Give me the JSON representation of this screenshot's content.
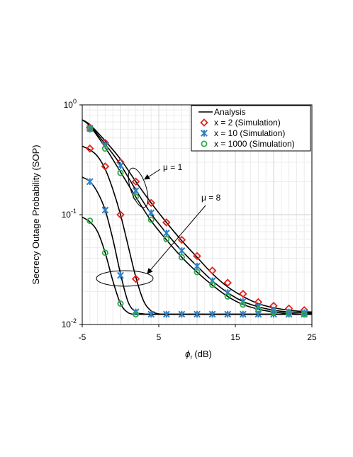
{
  "chart_data": {
    "type": "line",
    "xlabel": "ϕ",
    "xlabel_sub": "r",
    "xlabel_unit": "(dB)",
    "ylabel": "Secrecy Outage Probability (SOP)",
    "y_scale": "log",
    "xlim": [
      -5,
      25
    ],
    "ylim": [
      0.01,
      1
    ],
    "x_ticks": [
      {
        "value": -5,
        "label": "-5"
      },
      {
        "value": 5,
        "label": "5"
      },
      {
        "value": 15,
        "label": "15"
      },
      {
        "value": 25,
        "label": "25"
      }
    ],
    "y_ticks": [
      {
        "value": 0.01,
        "base": "10",
        "exp": "-2"
      },
      {
        "value": 0.1,
        "base": "10",
        "exp": "-1"
      },
      {
        "value": 1,
        "base": "10",
        "exp": "0"
      }
    ],
    "grid": true,
    "legend_position": "top-right",
    "legend": [
      {
        "label": "Analysis",
        "marker": "line",
        "color": "#000000"
      },
      {
        "label": "x = 2 (Simulation)",
        "marker": "diamond",
        "color": "#e2231a"
      },
      {
        "label": "x = 10 (Simulation)",
        "marker": "asterisk",
        "color": "#2f7fc1"
      },
      {
        "label": "x = 1000 (Simulation)",
        "marker": "circle",
        "color": "#2eaa4a"
      }
    ],
    "annotations": [
      {
        "text": "μ = 1"
      },
      {
        "text": "μ = 8"
      }
    ],
    "analysis_curves": [
      {
        "group": "mu1",
        "x": [
          -5,
          -4,
          -2,
          0,
          2,
          4,
          6,
          8,
          10,
          12,
          14,
          16,
          18,
          20,
          22,
          24,
          25
        ],
        "y": [
          0.73,
          0.66,
          0.47,
          0.32,
          0.2,
          0.128,
          0.085,
          0.058,
          0.041,
          0.029,
          0.022,
          0.018,
          0.0155,
          0.0142,
          0.0135,
          0.0131,
          0.013
        ]
      },
      {
        "group": "mu1",
        "x": [
          -5,
          -4,
          -2,
          0,
          2,
          4,
          6,
          8,
          10,
          12,
          14,
          16,
          18,
          20,
          22,
          24,
          25
        ],
        "y": [
          0.73,
          0.65,
          0.44,
          0.285,
          0.168,
          0.102,
          0.068,
          0.047,
          0.034,
          0.025,
          0.0195,
          0.0162,
          0.0145,
          0.0135,
          0.013,
          0.0128,
          0.0127
        ]
      },
      {
        "group": "mu1",
        "x": [
          -5,
          -4,
          -2,
          0,
          2,
          4,
          6,
          8,
          10,
          12,
          14,
          16,
          18,
          20,
          22,
          24,
          25
        ],
        "y": [
          0.73,
          0.64,
          0.41,
          0.245,
          0.145,
          0.088,
          0.059,
          0.041,
          0.03,
          0.0228,
          0.018,
          0.0152,
          0.0138,
          0.013,
          0.0126,
          0.0124,
          0.0124
        ]
      },
      {
        "group": "mu8",
        "x": [
          -5,
          -4,
          -3,
          -2,
          -1,
          0,
          1,
          2,
          3,
          4,
          5,
          6,
          8,
          10,
          14,
          18,
          25
        ],
        "y": [
          0.42,
          0.39,
          0.34,
          0.26,
          0.17,
          0.1,
          0.052,
          0.027,
          0.0165,
          0.0133,
          0.0125,
          0.0124,
          0.0124,
          0.0124,
          0.0124,
          0.0124,
          0.0124
        ]
      },
      {
        "group": "mu8",
        "x": [
          -5,
          -4,
          -3,
          -2,
          -1,
          0,
          1,
          2,
          3,
          4,
          6,
          10,
          25
        ],
        "y": [
          0.22,
          0.2,
          0.16,
          0.11,
          0.06,
          0.029,
          0.016,
          0.013,
          0.0125,
          0.0124,
          0.0124,
          0.0124,
          0.0124
        ]
      },
      {
        "group": "mu8",
        "x": [
          -5,
          -4,
          -3,
          -2,
          -1,
          0,
          1,
          2,
          3,
          5,
          10,
          25
        ],
        "y": [
          0.095,
          0.086,
          0.07,
          0.045,
          0.025,
          0.0155,
          0.0128,
          0.0124,
          0.0124,
          0.0124,
          0.0124,
          0.0124
        ]
      }
    ],
    "series": [
      {
        "name": "x = 2 (Simulation)",
        "marker": "diamond",
        "color": "#e2231a",
        "x": [
          -4,
          -2,
          0,
          2,
          4,
          6,
          8,
          10,
          12,
          14,
          16,
          18,
          20,
          22,
          24
        ],
        "y": [
          0.62,
          0.45,
          0.3,
          0.2,
          0.128,
          0.085,
          0.059,
          0.042,
          0.031,
          0.024,
          0.019,
          0.016,
          0.0148,
          0.014,
          0.0135
        ]
      },
      {
        "name": "x = 2 (Simulation)",
        "marker": "diamond",
        "color": "#e2231a",
        "x": [
          -4,
          -2,
          0,
          2
        ],
        "y": [
          0.4,
          0.275,
          0.1,
          0.026
        ]
      },
      {
        "name": "x = 10 (Simulation)",
        "marker": "asterisk",
        "color": "#2f7fc1",
        "x": [
          -4,
          -2,
          0,
          2,
          4,
          6,
          8,
          10,
          12,
          14,
          16,
          18,
          20,
          22,
          24
        ],
        "y": [
          0.61,
          0.43,
          0.28,
          0.165,
          0.104,
          0.068,
          0.047,
          0.034,
          0.025,
          0.0195,
          0.0162,
          0.0145,
          0.0135,
          0.013,
          0.0128
        ]
      },
      {
        "name": "x = 10 (Simulation)",
        "marker": "asterisk",
        "color": "#2f7fc1",
        "x": [
          -4,
          -2,
          0,
          2,
          4,
          6,
          8,
          10,
          12,
          14,
          16,
          18,
          20,
          22,
          24
        ],
        "y": [
          0.2,
          0.11,
          0.028,
          0.013,
          0.0124,
          0.0124,
          0.0124,
          0.0124,
          0.0124,
          0.0124,
          0.0124,
          0.0124,
          0.0124,
          0.0124,
          0.0124
        ]
      },
      {
        "name": "x = 1000 (Simulation)",
        "marker": "circle",
        "color": "#2eaa4a",
        "x": [
          -4,
          -2,
          0,
          2,
          4,
          6,
          8,
          10,
          12,
          14,
          16,
          18,
          20,
          22,
          24
        ],
        "y": [
          0.6,
          0.4,
          0.24,
          0.145,
          0.09,
          0.06,
          0.041,
          0.03,
          0.023,
          0.018,
          0.0152,
          0.0138,
          0.013,
          0.0126,
          0.0124
        ]
      },
      {
        "name": "x = 1000 (Simulation)",
        "marker": "circle",
        "color": "#2eaa4a",
        "x": [
          -4,
          -2,
          0,
          2
        ],
        "y": [
          0.088,
          0.045,
          0.0155,
          0.0124
        ]
      }
    ]
  }
}
